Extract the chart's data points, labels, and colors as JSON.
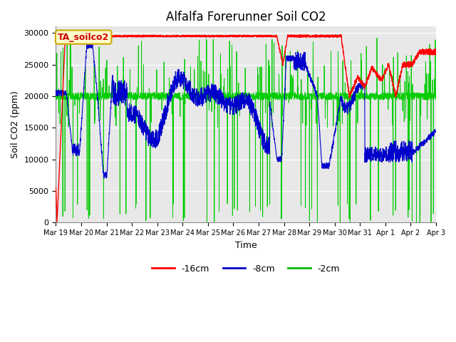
{
  "title": "Alfalfa Forerunner Soil CO2",
  "ylabel": "Soil CO2 (ppm)",
  "xlabel": "Time",
  "ylim": [
    0,
    31000
  ],
  "yticks": [
    0,
    5000,
    10000,
    15000,
    20000,
    25000,
    30000
  ],
  "fig_facecolor": "#ffffff",
  "plot_bg": "#e8e8e8",
  "annotation_label": "TA_soilco2",
  "annotation_box_color": "#ffffcc",
  "annotation_text_color": "#cc0000",
  "annotation_edge_color": "#ccaa00",
  "legend_labels": [
    "-16cm",
    "-8cm",
    "-2cm"
  ],
  "legend_colors": [
    "#ff0000",
    "#0000cc",
    "#00bb00"
  ],
  "line_colors": {
    "red": "#ff0000",
    "blue": "#0000cc",
    "green": "#00cc00"
  },
  "x_tick_labels": [
    "Mar 19",
    "Mar 20",
    "Mar 21",
    "Mar 22",
    "Mar 23",
    "Mar 24",
    "Mar 25",
    "Mar 26",
    "Mar 27",
    "Mar 28",
    "Mar 29",
    "Mar 30",
    "Mar 31",
    "Apr 1",
    "Apr 2",
    "Apr 3"
  ],
  "n_days": 16,
  "grid_color": "#ffffff",
  "title_fontsize": 12,
  "label_fontsize": 9,
  "tick_fontsize": 8
}
